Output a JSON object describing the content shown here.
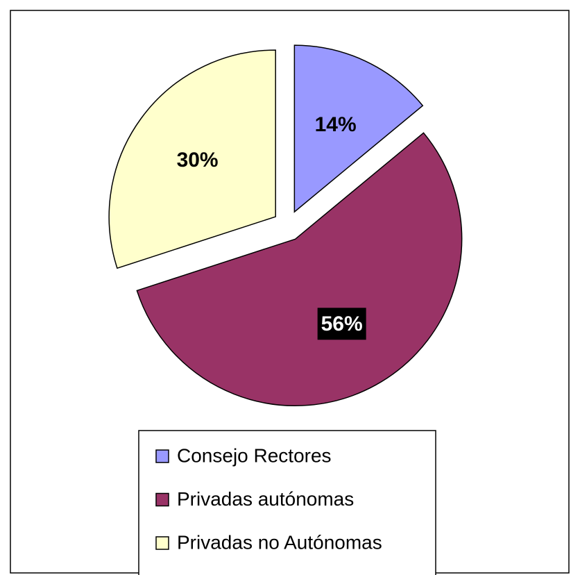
{
  "chart_data": {
    "type": "pie",
    "categories": [
      "Consejo Rectores",
      "Privadas autónomas",
      "Privadas no Autónomas"
    ],
    "values": [
      14,
      56,
      30
    ],
    "value_labels": [
      "14%",
      "56%",
      "30%"
    ],
    "colors": [
      "#9999ff",
      "#993366",
      "#ffffcc"
    ],
    "legend": "bottom"
  }
}
